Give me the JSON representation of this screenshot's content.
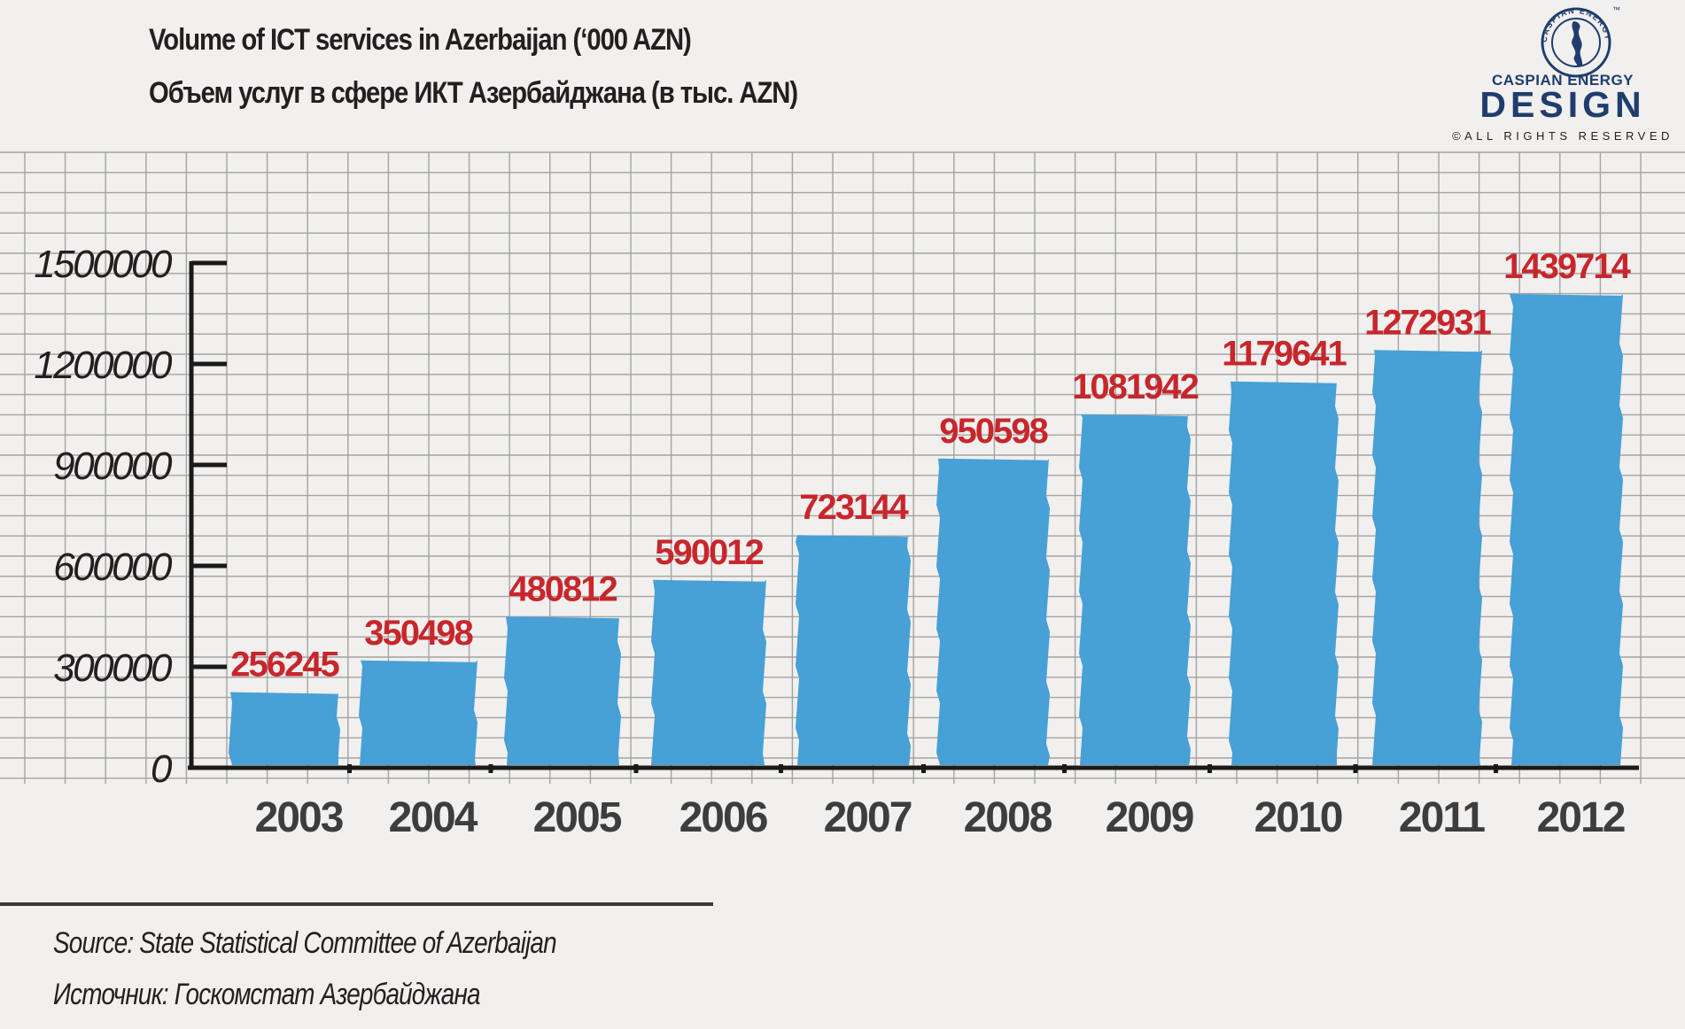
{
  "title_en": "Volume of ICT services in Azerbaijan (‘000 AZN)",
  "title_ru": "Объем услуг в сфере ИКТ Азербайджана (в тыс. AZN)",
  "source_en": "Source: State Statistical Committee of Azerbaijan",
  "source_ru": "Источник: Госкомстат Азербайджана",
  "logo": {
    "ring_text": "CASPIAN ENERGY",
    "trademark": "™",
    "line1": "CASPIAN ENERGY",
    "line2": "DESIGN",
    "rights": "©ALL RIGHTS RESERVED"
  },
  "colors": {
    "bar": "#47a0d6",
    "value_label": "#c8262c",
    "axis": "#1a1a1a",
    "grid": "#a3a3a3",
    "logo": "#1f3d6e",
    "text": "#231f20",
    "year_label": "#3d3d3d"
  },
  "chart_data": {
    "type": "bar",
    "categories": [
      "2003",
      "2004",
      "2005",
      "2006",
      "2007",
      "2008",
      "2009",
      "2010",
      "2011",
      "2012"
    ],
    "values": [
      256245,
      350498,
      480812,
      590012,
      723144,
      950598,
      1081942,
      1179641,
      1272931,
      1439714
    ],
    "value_labels": [
      "256245",
      "350498",
      "480812",
      "590012",
      "723144",
      "950598",
      "1081942",
      "1179641",
      "1272931",
      "1439714"
    ],
    "yticks": [
      0,
      300000,
      600000,
      900000,
      1200000,
      1500000
    ],
    "ytick_labels": [
      "0",
      "300000",
      "600000",
      "900000",
      "1200000",
      "1500000"
    ],
    "ylim": [
      0,
      1500000
    ],
    "grid": true,
    "legend": "none"
  }
}
